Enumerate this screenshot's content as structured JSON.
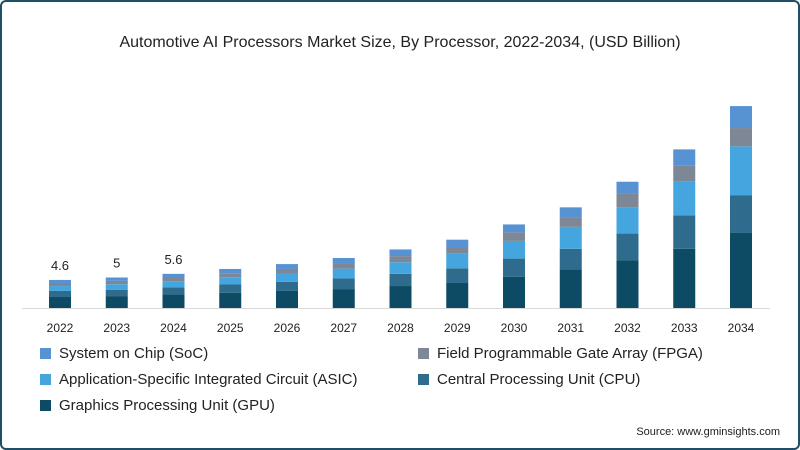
{
  "chart_data": {
    "type": "bar",
    "stacked": true,
    "title": "Automotive AI Processors Market Size, By Processor, 2022-2034, (USD Billion)",
    "xlabel": "",
    "ylabel": "",
    "categories": [
      "2022",
      "2023",
      "2024",
      "2025",
      "2026",
      "2027",
      "2028",
      "2029",
      "2030",
      "2031",
      "2032",
      "2033",
      "2034"
    ],
    "series": [
      {
        "name": "Graphics Processing Unit (GPU)",
        "color": "#0d4a63",
        "values": [
          1.8,
          1.95,
          2.2,
          2.5,
          2.8,
          3.1,
          3.6,
          4.1,
          5.1,
          6.3,
          7.8,
          9.7,
          12.3
        ]
      },
      {
        "name": "Central Processing Unit (CPU)",
        "color": "#2e6b8c",
        "values": [
          1.0,
          1.05,
          1.2,
          1.35,
          1.5,
          1.75,
          2.0,
          2.4,
          3.0,
          3.4,
          4.4,
          5.5,
          6.2
        ]
      },
      {
        "name": "Application-Specific Integrated Circuit (ASIC)",
        "color": "#45a6df",
        "values": [
          0.8,
          0.9,
          1.0,
          1.2,
          1.35,
          1.6,
          1.9,
          2.4,
          2.9,
          3.6,
          4.3,
          5.5,
          8.0
        ]
      },
      {
        "name": "Field Programmable Gate Array (FPGA)",
        "color": "#7d8795",
        "values": [
          0.5,
          0.55,
          0.6,
          0.65,
          0.75,
          0.85,
          1.0,
          1.1,
          1.4,
          1.6,
          2.2,
          2.7,
          3.0
        ]
      },
      {
        "name": "System on Chip (SoC)",
        "color": "#5792d2",
        "values": [
          0.5,
          0.55,
          0.6,
          0.7,
          0.8,
          0.9,
          1.1,
          1.2,
          1.3,
          1.6,
          2.0,
          2.6,
          3.6
        ]
      }
    ],
    "data_labels": [
      {
        "category": "2022",
        "text": "4.6"
      },
      {
        "category": "2023",
        "text": "5"
      },
      {
        "category": "2024",
        "text": "5.6"
      }
    ],
    "ylim": [
      0,
      35
    ],
    "grid": false,
    "legend_position": "bottom"
  },
  "legend_order": [
    4,
    3,
    2,
    1,
    0
  ],
  "source": "Source: www.gminsights.com"
}
